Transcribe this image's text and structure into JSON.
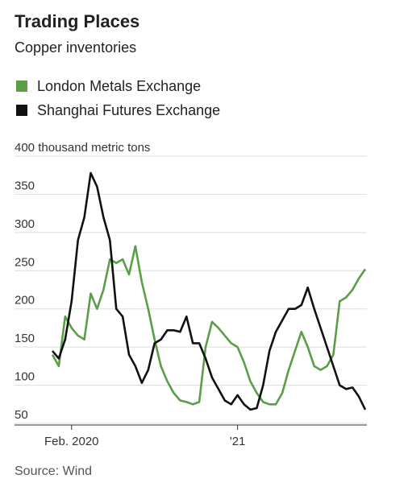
{
  "chart_data": {
    "type": "line",
    "title": "Trading Places",
    "subtitle": "Copper inventories",
    "source": "Source: Wind",
    "categories": [
      null,
      null,
      null,
      "Feb. 2020",
      null,
      null,
      null,
      null,
      null,
      null,
      null,
      null,
      null,
      null,
      null,
      null,
      null,
      null,
      null,
      null,
      null,
      null,
      null,
      null,
      null,
      null,
      null,
      null,
      null,
      "'21",
      null,
      null,
      null,
      null,
      null,
      null,
      null,
      null,
      null,
      null,
      null,
      null,
      null,
      null,
      null,
      null,
      null,
      null,
      null,
      null
    ],
    "series": [
      {
        "name": "London Metals Exchange",
        "color": "#5a9e48",
        "values": [
          140,
          125,
          190,
          175,
          165,
          160,
          220,
          200,
          225,
          265,
          260,
          265,
          245,
          282,
          235,
          200,
          160,
          125,
          105,
          90,
          80,
          78,
          75,
          78,
          150,
          183,
          175,
          165,
          155,
          150,
          130,
          105,
          90,
          78,
          75,
          75,
          90,
          120,
          145,
          170,
          150,
          125,
          120,
          125,
          140,
          210,
          215,
          225,
          240,
          252
        ]
      },
      {
        "name": "Shanghai Futures Exchange",
        "color": "#111111",
        "values": [
          145,
          135,
          160,
          210,
          290,
          320,
          378,
          360,
          320,
          290,
          200,
          190,
          140,
          125,
          103,
          120,
          155,
          160,
          172,
          172,
          170,
          190,
          155,
          155,
          135,
          110,
          95,
          80,
          75,
          87,
          75,
          68,
          70,
          100,
          145,
          170,
          185,
          200,
          200,
          205,
          228,
          200,
          175,
          150,
          125,
          100,
          95,
          97,
          85,
          68
        ]
      }
    ],
    "ylim": [
      50,
      400
    ],
    "yticks": [
      50,
      100,
      150,
      200,
      250,
      300,
      350,
      {
        "value": 400,
        "label": "400 thousand metric tons"
      }
    ],
    "grid": true
  }
}
